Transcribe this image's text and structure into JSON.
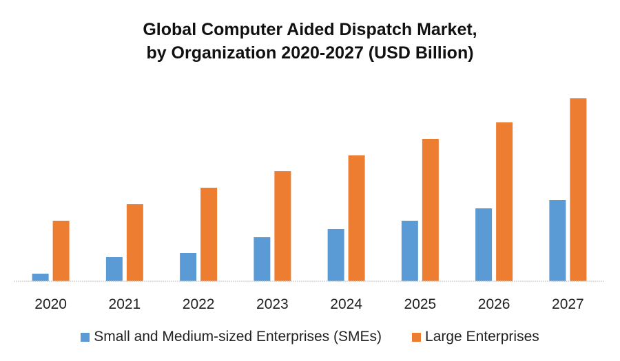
{
  "chart_data": {
    "type": "bar",
    "title": "Global Computer Aided Dispatch Market, by Organization 2020-2027 (USD Billion)",
    "title_lines": [
      "Global Computer Aided Dispatch Market,",
      "by Organization 2020-2027 (USD Billion)"
    ],
    "xlabel": "",
    "ylabel": "",
    "categories": [
      "2020",
      "2021",
      "2022",
      "2023",
      "2024",
      "2025",
      "2026",
      "2027"
    ],
    "series": [
      {
        "name": "Small and Medium-sized Enterprises (SMEs)",
        "color": "#5B9BD5",
        "values": [
          11,
          35,
          41,
          64,
          76,
          88,
          106,
          118
        ]
      },
      {
        "name": "Large Enterprises",
        "color": "#ED7D31",
        "values": [
          88,
          112,
          136,
          160,
          183,
          207,
          231,
          266
        ]
      }
    ],
    "ylim": [
      0,
      280
    ],
    "y_axis_visible": false,
    "grid": false,
    "legend_position": "bottom",
    "value_note": "relative values; no axis scale shown"
  }
}
